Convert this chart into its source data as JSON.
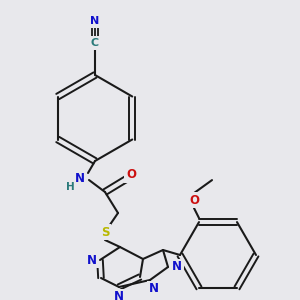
{
  "background_color": "#e8e8ec",
  "bond_color": "#1a1a1a",
  "colors": {
    "N": "#1010cc",
    "O": "#cc1010",
    "S": "#b8b800",
    "C_label": "#2a7a7a",
    "H_label": "#2a7a7a",
    "text": "#1a1a1a"
  },
  "figsize": [
    3.0,
    3.0
  ],
  "dpi": 100
}
